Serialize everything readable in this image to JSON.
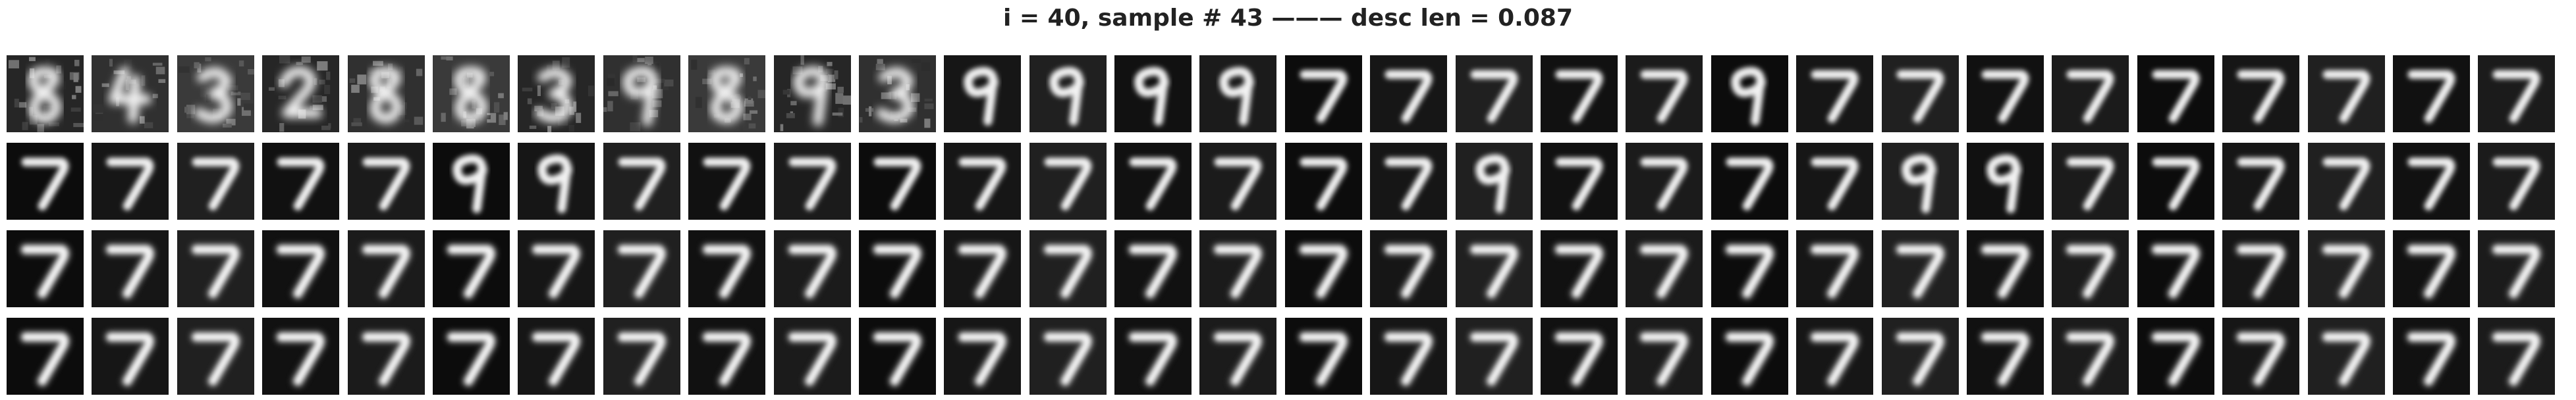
{
  "figure": {
    "title": "i = 40, sample # 43 ——— desc len = 0.087",
    "grid": {
      "rows": 4,
      "cols": 30,
      "content": "grayscale handwritten digit reconstructions (mostly 7; early frames 0/4/3/2/8/9)"
    }
  }
}
